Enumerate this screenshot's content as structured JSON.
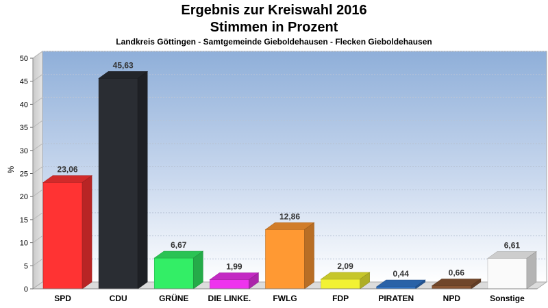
{
  "header": {
    "title": "Ergebnis zur Kreiswahl 2016",
    "subtitle": "Stimmen in Prozent",
    "region": "Landkreis Göttingen - Samtgemeinde Gieboldehausen - Flecken Gieboldehausen"
  },
  "chart_data": {
    "type": "bar",
    "title": "Ergebnis zur Kreiswahl 2016",
    "subtitle": "Stimmen in Prozent",
    "xlabel": "",
    "ylabel": "%",
    "ylim": [
      0,
      50
    ],
    "yticks": [
      0,
      5,
      10,
      15,
      20,
      25,
      30,
      35,
      40,
      45,
      50
    ],
    "grid": true,
    "categories": [
      "SPD",
      "CDU",
      "GRÜNE",
      "DIE LINKE.",
      "FWLG",
      "FDP",
      "PIRATEN",
      "NPD",
      "Sonstige"
    ],
    "values": [
      23.06,
      45.63,
      6.67,
      1.99,
      12.86,
      2.09,
      0.44,
      0.66,
      6.61
    ],
    "value_labels": [
      "23,06",
      "45,63",
      "6,67",
      "1,99",
      "12,86",
      "2,09",
      "0,44",
      "0,66",
      "6,61"
    ],
    "colors": [
      "#ff3333",
      "#2a2d33",
      "#33ee66",
      "#ee33ee",
      "#ff9933",
      "#f2f233",
      "#3377cc",
      "#885533",
      "#fafafa"
    ]
  }
}
